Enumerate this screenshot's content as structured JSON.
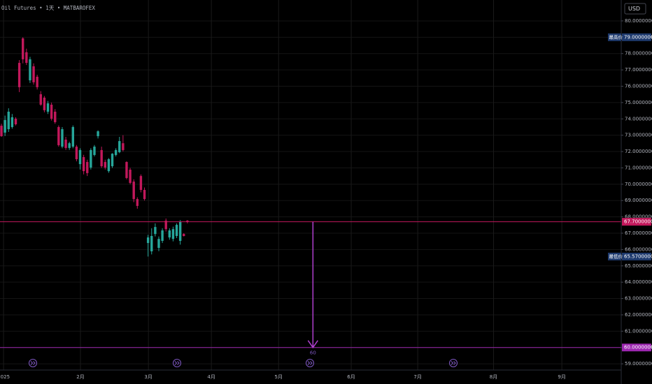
{
  "chart_data": {
    "type": "candlestick",
    "title": "Oil Futures • 1天 • MATBAROFEX",
    "currency": "USD",
    "up_color": "#26a69a",
    "down_color": "#c2185b",
    "grid": true,
    "xlim": [
      -0.4,
      173.3
    ],
    "xticks": [
      {
        "value": 0.6,
        "label": "2025"
      },
      {
        "value": 22.1,
        "label": "2月"
      },
      {
        "value": 41.1,
        "label": "3月"
      },
      {
        "value": 58.7,
        "label": "4月"
      },
      {
        "value": 77.5,
        "label": "5月"
      },
      {
        "value": 97.8,
        "label": "6月"
      },
      {
        "value": 116.4,
        "label": "7月"
      },
      {
        "value": 137.6,
        "label": "8月"
      },
      {
        "value": 156.7,
        "label": "9月"
      }
    ],
    "ylim": [
      58.62,
      81.28
    ],
    "yticks": [
      {
        "value": 59,
        "label": "59.00000000"
      },
      {
        "value": 60,
        "label": "60.00000000"
      },
      {
        "value": 61,
        "label": "61.00000000"
      },
      {
        "value": 62,
        "label": "62.00000000"
      },
      {
        "value": 63,
        "label": "63.00000000"
      },
      {
        "value": 64,
        "label": "64.00000000"
      },
      {
        "value": 65,
        "label": "65.00000000"
      },
      {
        "value": 66,
        "label": "66.00000000"
      },
      {
        "value": 67,
        "label": "67.00000000"
      },
      {
        "value": 68,
        "label": "68.00000000"
      },
      {
        "value": 69,
        "label": "69.00000000"
      },
      {
        "value": 70,
        "label": "70.00000000"
      },
      {
        "value": 71,
        "label": "71.00000000"
      },
      {
        "value": 72,
        "label": "72.00000000"
      },
      {
        "value": 73,
        "label": "73.00000000"
      },
      {
        "value": 74,
        "label": "74.00000000"
      },
      {
        "value": 75,
        "label": "75.00000000"
      },
      {
        "value": 76,
        "label": "76.00000000"
      },
      {
        "value": 77,
        "label": "77.00000000"
      },
      {
        "value": 78,
        "label": "78.00000000"
      },
      {
        "value": 79,
        "label": "79.00000000"
      },
      {
        "value": 80,
        "label": "80.00000000"
      }
    ],
    "ohlc": [
      [
        73.58,
        73.7,
        72.9,
        72.94
      ],
      [
        73.16,
        74.2,
        72.95,
        73.93
      ],
      [
        73.37,
        74.65,
        73.2,
        74.44
      ],
      [
        73.5,
        74.3,
        73.4,
        74.1
      ],
      [
        74.01,
        74.1,
        73.6,
        73.67
      ],
      [
        77.43,
        77.6,
        75.64,
        75.94
      ],
      [
        78.93,
        79.0,
        77.4,
        77.65
      ],
      [
        78.08,
        78.3,
        77.3,
        77.43
      ],
      [
        76.36,
        77.8,
        76.2,
        77.65
      ],
      [
        77.22,
        77.4,
        76.1,
        76.24
      ],
      [
        76.58,
        76.7,
        75.8,
        75.94
      ],
      [
        75.51,
        75.7,
        74.8,
        74.87
      ],
      [
        75.3,
        75.4,
        74.4,
        74.53
      ],
      [
        74.44,
        75.1,
        74.3,
        74.95
      ],
      [
        74.87,
        75.0,
        73.9,
        74.01
      ],
      [
        74.44,
        74.6,
        73.7,
        73.8
      ],
      [
        73.5,
        73.6,
        72.3,
        72.39
      ],
      [
        72.3,
        73.5,
        72.2,
        73.37
      ],
      [
        72.73,
        72.9,
        72.1,
        72.22
      ],
      [
        72.22,
        72.6,
        72.1,
        72.51
      ],
      [
        72.3,
        73.6,
        72.2,
        73.5
      ],
      [
        72.3,
        72.4,
        71.4,
        71.53
      ],
      [
        71.23,
        72.2,
        70.9,
        72.09
      ],
      [
        71.66,
        71.8,
        70.6,
        70.8
      ],
      [
        71.36,
        71.5,
        70.5,
        70.68
      ],
      [
        71.02,
        72.2,
        70.9,
        72.09
      ],
      [
        71.79,
        72.4,
        71.7,
        72.3
      ],
      [
        72.94,
        73.3,
        72.8,
        73.24
      ],
      [
        72.09,
        72.3,
        71.0,
        71.1
      ],
      [
        71.36,
        71.5,
        70.9,
        71.02
      ],
      [
        70.8,
        71.6,
        70.7,
        71.53
      ],
      [
        71.1,
        71.9,
        71.0,
        71.87
      ],
      [
        71.79,
        72.2,
        71.7,
        72.09
      ],
      [
        71.96,
        72.9,
        71.9,
        72.64
      ],
      [
        72.51,
        73.0,
        72.0,
        72.09
      ],
      [
        71.36,
        71.4,
        70.3,
        70.38
      ],
      [
        70.89,
        71.0,
        70.0,
        70.08
      ],
      [
        70.16,
        70.3,
        68.9,
        69.09
      ],
      [
        69.09,
        69.2,
        68.5,
        68.67
      ],
      [
        70.5,
        70.6,
        69.5,
        69.65
      ],
      [
        69.65,
        69.8,
        69.0,
        69.09
      ],
      [
        66.4,
        66.9,
        65.57,
        66.74
      ],
      [
        65.89,
        67.3,
        65.7,
        66.83
      ],
      [
        66.95,
        67.6,
        66.8,
        67.38
      ],
      [
        66.1,
        66.8,
        65.9,
        66.65
      ],
      [
        66.53,
        67.3,
        66.4,
        67.17
      ],
      [
        67.77,
        67.9,
        67.1,
        67.25
      ],
      [
        66.74,
        67.3,
        66.6,
        67.17
      ],
      [
        66.65,
        67.4,
        66.5,
        67.25
      ],
      [
        66.83,
        67.6,
        66.7,
        67.51
      ],
      [
        66.53,
        67.8,
        66.3,
        67.69
      ],
      [
        66.95,
        67.0,
        66.8,
        66.83
      ],
      [
        67.77,
        67.8,
        67.6,
        67.7
      ]
    ],
    "price_tags": [
      {
        "value": 79,
        "label": "79.00000000",
        "tag": "最高价",
        "color": "#1e3a6e"
      },
      {
        "value": 67.7,
        "label": "67.70000000",
        "color": "#c2185b",
        "line": true
      },
      {
        "value": 65.57,
        "label": "65.57000000",
        "tag": "最低价",
        "color": "#1e3a6e"
      },
      {
        "value": 60,
        "label": "60.00000000",
        "color": "#9c27b0",
        "line": true
      }
    ],
    "target_arrow": {
      "x": 87.1,
      "from": 67.7,
      "to": 60,
      "color": "#b040d0"
    }
  }
}
